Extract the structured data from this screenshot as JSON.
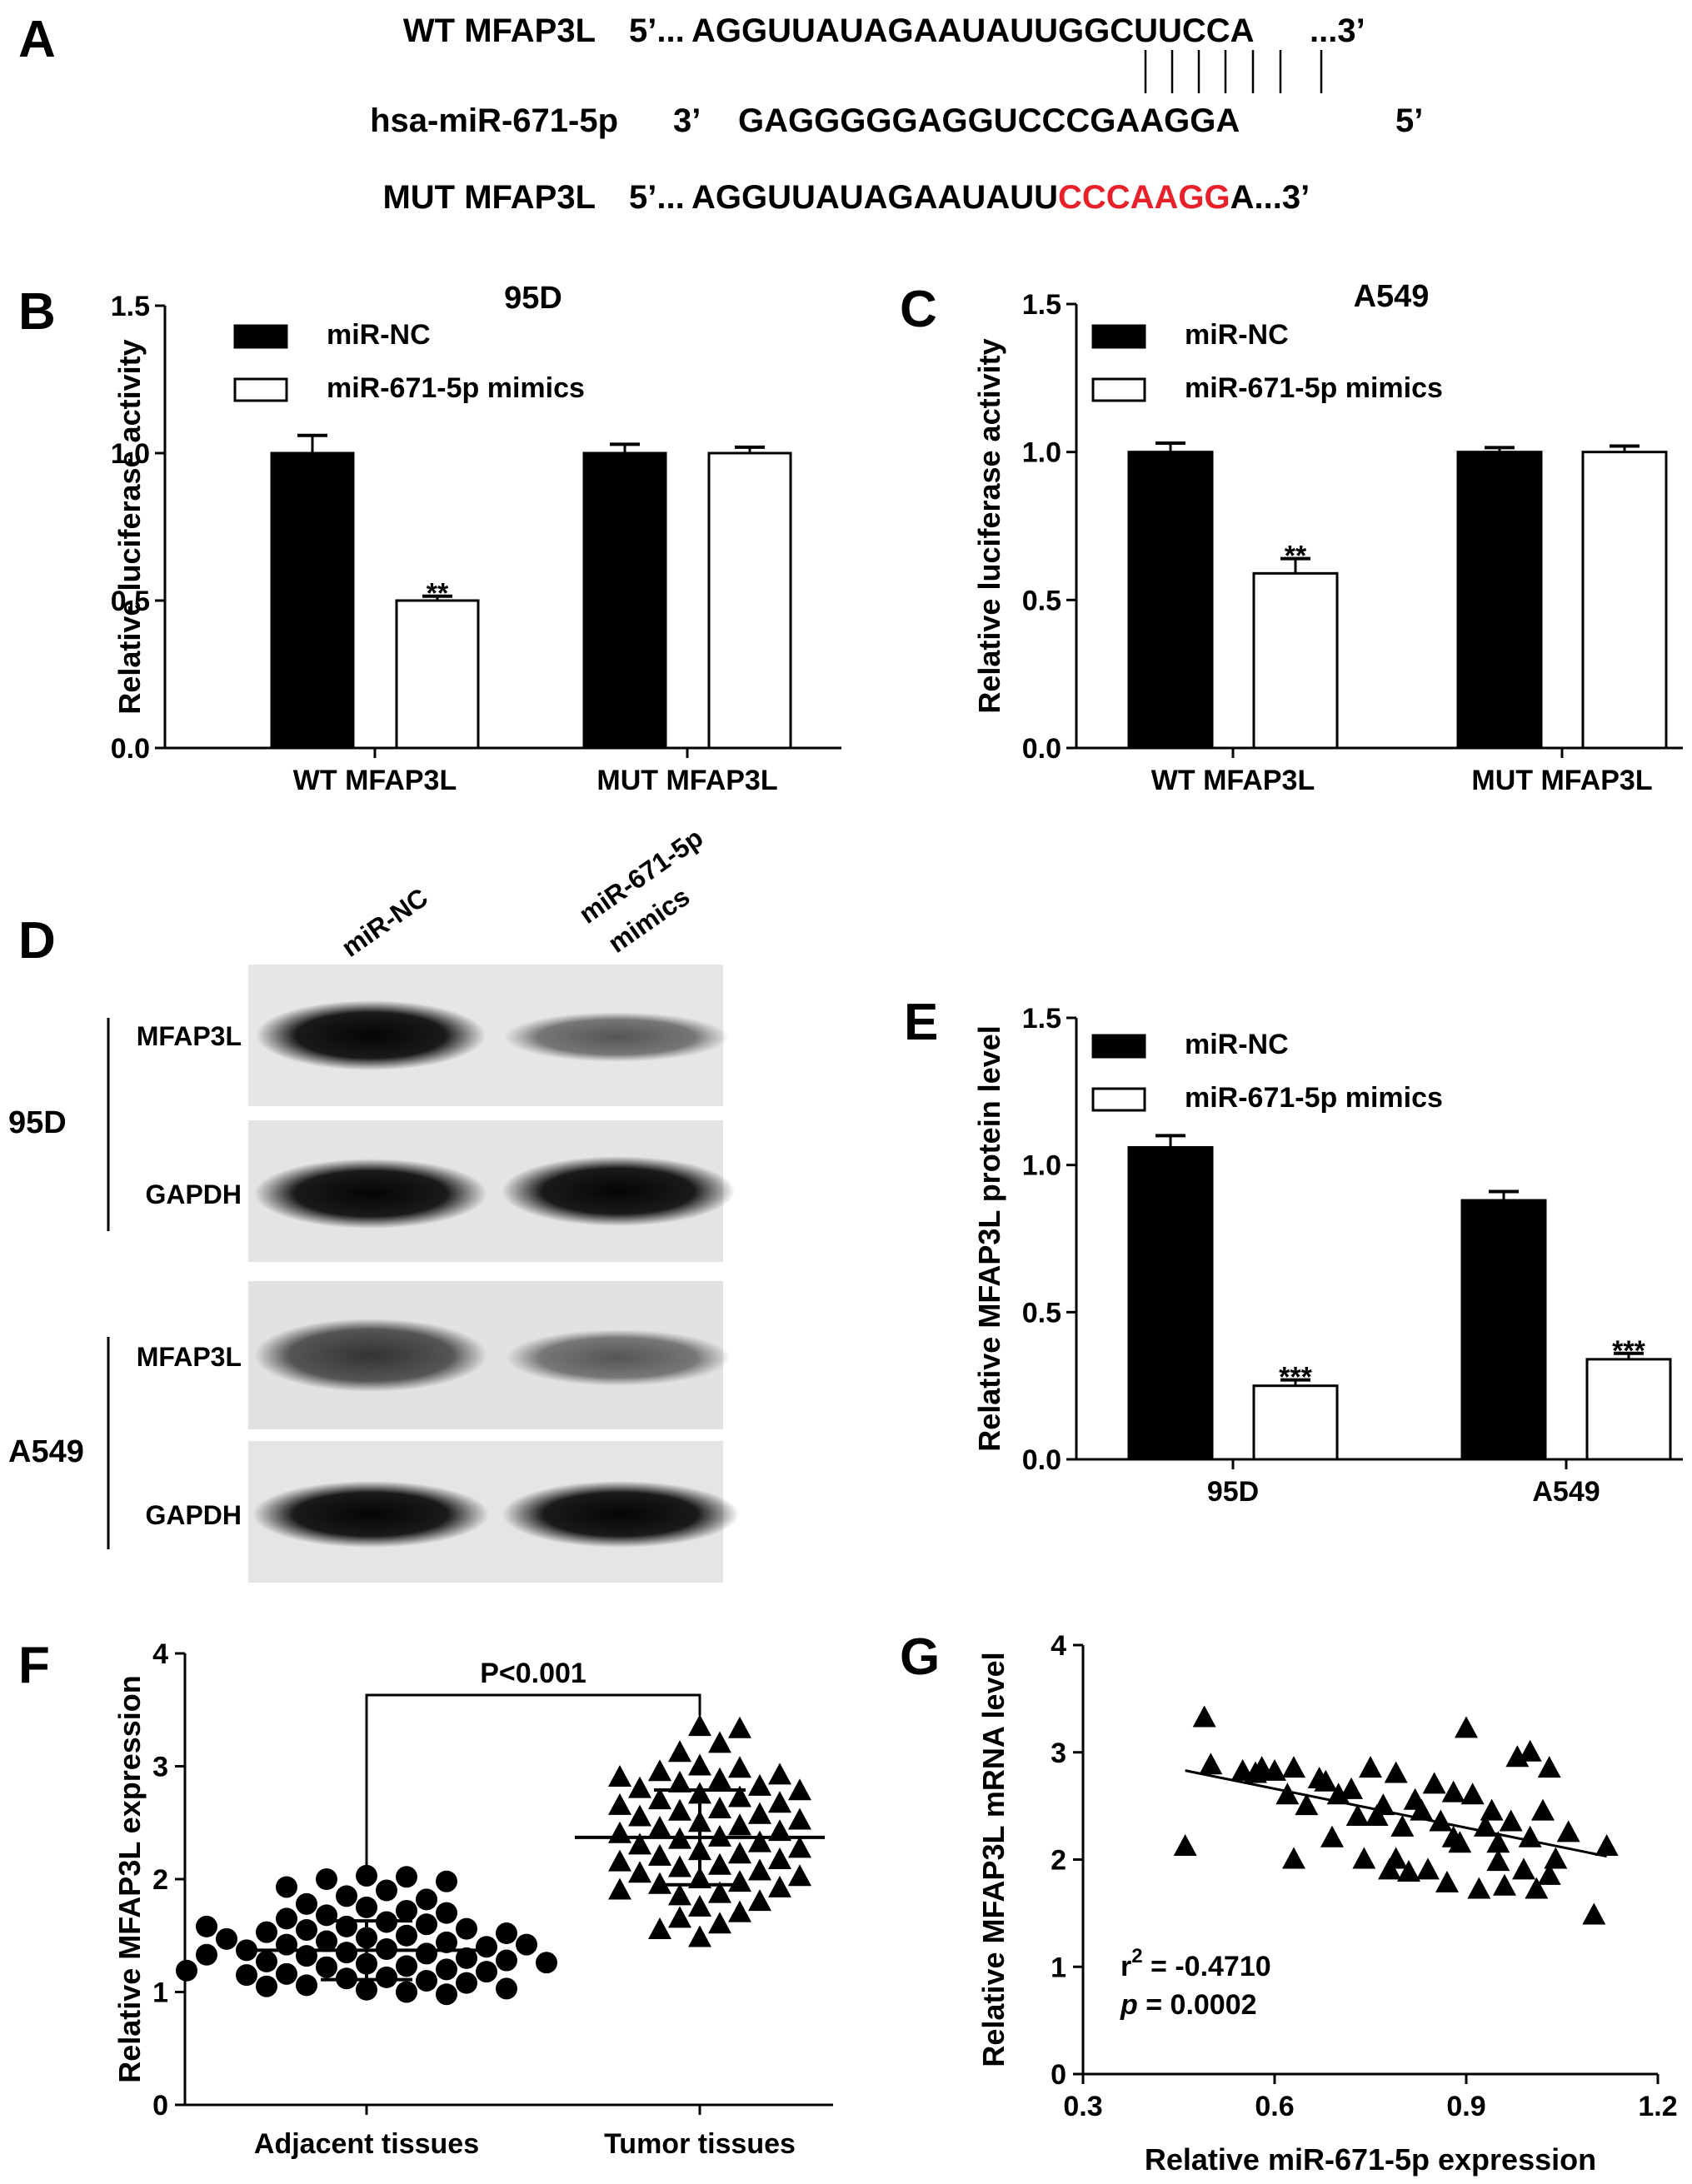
{
  "panelA": {
    "letter": "A",
    "rows": [
      {
        "label": "WT MFAP3L",
        "p5": "5’...",
        "seq": "AGGUUAUAGAAUAUUGGCUUCCA",
        "p3": "...3’",
        "highlight": ""
      },
      {
        "label": "hsa-miR-671-5p",
        "p5": "3’",
        "seq": "GAGGGGGAGGUCCCGAAGGA",
        "p3": "5’",
        "highlight": ""
      },
      {
        "label": "MUT MFAP3L",
        "p5": "5’...",
        "seq": "AGGUUAUAGAAUAUU",
        "mut": "CCCAAGG",
        "seqEnd": "A",
        "p3": "...3’"
      }
    ],
    "highlight_color": "#e8202a"
  },
  "panelD": {
    "letter": "D",
    "lanes": [
      "miR-NC",
      "miR-671-5p",
      "mimics"
    ],
    "groups": [
      {
        "cell": "95D",
        "bands": [
          "MFAP3L",
          "GAPDH"
        ]
      },
      {
        "cell": "A549",
        "bands": [
          "MFAP3L",
          "GAPDH"
        ]
      }
    ]
  },
  "chart_data": [
    {
      "panel": "B",
      "type": "bar",
      "title": "95D",
      "ylabel": "Relative luciferase activity",
      "ylim": [
        0,
        1.5
      ],
      "yticks": [
        "0.0",
        "0.5",
        "1.0",
        "1.5"
      ],
      "categories": [
        "WT MFAP3L",
        "MUT MFAP3L"
      ],
      "series": [
        {
          "name": "miR-NC",
          "values": [
            1.0,
            1.0
          ],
          "errors": [
            0.06,
            0.03
          ],
          "color": "#000000"
        },
        {
          "name": "miR-671-5p mimics",
          "values": [
            0.5,
            1.0
          ],
          "errors": [
            0.015,
            0.02
          ],
          "color": "#ffffff"
        }
      ],
      "annotations": [
        {
          "category": 0,
          "series": 1,
          "text": "**"
        }
      ],
      "legend": "top-left"
    },
    {
      "panel": "C",
      "type": "bar",
      "title": "A549",
      "ylabel": "Relative luciferase activity",
      "ylim": [
        0,
        1.5
      ],
      "yticks": [
        "0.0",
        "0.5",
        "1.0",
        "1.5"
      ],
      "categories": [
        "WT MFAP3L",
        "MUT MFAP3L"
      ],
      "series": [
        {
          "name": "miR-NC",
          "values": [
            1.0,
            1.0
          ],
          "errors": [
            0.03,
            0.015
          ],
          "color": "#000000"
        },
        {
          "name": "miR-671-5p mimics",
          "values": [
            0.59,
            1.0
          ],
          "errors": [
            0.05,
            0.02
          ],
          "color": "#ffffff"
        }
      ],
      "annotations": [
        {
          "category": 0,
          "series": 1,
          "text": "**"
        }
      ],
      "legend": "top-left"
    },
    {
      "panel": "E",
      "type": "bar",
      "title": "",
      "ylabel": "Relative MFAP3L protein level",
      "ylim": [
        0,
        1.5
      ],
      "yticks": [
        "0.0",
        "0.5",
        "1.0",
        "1.5"
      ],
      "categories": [
        "95D",
        "A549"
      ],
      "series": [
        {
          "name": "miR-NC",
          "values": [
            1.06,
            0.88
          ],
          "errors": [
            0.04,
            0.03
          ],
          "color": "#000000"
        },
        {
          "name": "miR-671-5p mimics",
          "values": [
            0.25,
            0.34
          ],
          "errors": [
            0.02,
            0.02
          ],
          "color": "#ffffff"
        }
      ],
      "annotations": [
        {
          "category": 0,
          "series": 1,
          "text": "***"
        },
        {
          "category": 1,
          "series": 1,
          "text": "***"
        }
      ],
      "legend": "top-left"
    },
    {
      "panel": "F",
      "type": "scatter",
      "ylabel": "Relative MFAP3L expression",
      "ylim": [
        0,
        4
      ],
      "yticks": [
        "0",
        "1",
        "2",
        "3",
        "4"
      ],
      "categories": [
        "Adjacent tissues",
        "Tumor tissues"
      ],
      "groups": [
        {
          "name": "Adjacent tissues",
          "marker": "circle",
          "mean": 1.37,
          "sd": 0.26,
          "values": [
            2.03,
            2.02,
            2.0,
            1.98,
            1.93,
            1.9,
            1.85,
            1.82,
            1.78,
            1.75,
            1.72,
            1.7,
            1.68,
            1.65,
            1.62,
            1.6,
            1.58,
            1.56,
            1.55,
            1.53,
            1.52,
            1.5,
            1.48,
            1.47,
            1.45,
            1.44,
            1.42,
            1.4,
            1.38,
            1.37,
            1.35,
            1.34,
            1.32,
            1.3,
            1.28,
            1.27,
            1.25,
            1.23,
            1.22,
            1.2,
            1.18,
            1.16,
            1.15,
            1.13,
            1.12,
            1.1,
            1.08,
            1.06,
            1.05,
            1.03,
            1.02,
            1.0,
            0.98,
            1.42,
            1.33,
            1.26,
            1.19,
            1.58
          ]
        },
        {
          "name": "Tumor tissues",
          "marker": "triangle",
          "mean": 2.37,
          "sd": 0.42,
          "values": [
            3.35,
            3.33,
            3.2,
            3.12,
            3.0,
            2.98,
            2.95,
            2.92,
            2.9,
            2.88,
            2.85,
            2.82,
            2.8,
            2.78,
            2.75,
            2.72,
            2.7,
            2.67,
            2.65,
            2.62,
            2.6,
            2.57,
            2.55,
            2.52,
            2.5,
            2.47,
            2.45,
            2.42,
            2.4,
            2.37,
            2.35,
            2.32,
            2.3,
            2.27,
            2.25,
            2.22,
            2.2,
            2.17,
            2.15,
            2.12,
            2.1,
            2.07,
            2.05,
            2.02,
            2.0,
            1.97,
            1.95,
            1.92,
            1.9,
            1.87,
            1.85,
            1.8,
            1.75,
            1.7,
            1.65,
            1.6,
            1.55,
            1.48
          ]
        }
      ],
      "comparison": "P<0.001"
    },
    {
      "panel": "G",
      "type": "scatter",
      "xlabel": "Relative miR-671-5p expression",
      "ylabel": "Relative MFAP3L mRNA level",
      "xlim": [
        0.3,
        1.2
      ],
      "ylim": [
        0,
        4
      ],
      "xticks": [
        "0.3",
        "0.6",
        "0.9",
        "1.2"
      ],
      "yticks": [
        "0",
        "1",
        "2",
        "3",
        "4"
      ],
      "marker": "triangle",
      "points": [
        [
          0.46,
          2.12
        ],
        [
          0.49,
          3.32
        ],
        [
          0.5,
          2.88
        ],
        [
          0.55,
          2.82
        ],
        [
          0.57,
          2.8
        ],
        [
          0.58,
          2.85
        ],
        [
          0.6,
          2.82
        ],
        [
          0.62,
          2.6
        ],
        [
          0.63,
          2.0
        ],
        [
          0.63,
          2.85
        ],
        [
          0.65,
          2.5
        ],
        [
          0.67,
          2.75
        ],
        [
          0.68,
          2.72
        ],
        [
          0.69,
          2.2
        ],
        [
          0.7,
          2.6
        ],
        [
          0.72,
          2.65
        ],
        [
          0.73,
          2.4
        ],
        [
          0.74,
          2.0
        ],
        [
          0.75,
          2.85
        ],
        [
          0.76,
          2.4
        ],
        [
          0.77,
          2.5
        ],
        [
          0.78,
          1.9
        ],
        [
          0.79,
          2.8
        ],
        [
          0.8,
          2.3
        ],
        [
          0.81,
          1.88
        ],
        [
          0.82,
          2.55
        ],
        [
          0.83,
          2.45
        ],
        [
          0.84,
          1.9
        ],
        [
          0.85,
          2.7
        ],
        [
          0.86,
          2.35
        ],
        [
          0.87,
          1.78
        ],
        [
          0.88,
          2.2
        ],
        [
          0.89,
          2.15
        ],
        [
          0.9,
          3.22
        ],
        [
          0.91,
          2.6
        ],
        [
          0.92,
          1.72
        ],
        [
          0.93,
          2.3
        ],
        [
          0.94,
          2.45
        ],
        [
          0.95,
          1.98
        ],
        [
          0.96,
          1.75
        ],
        [
          0.97,
          2.35
        ],
        [
          0.98,
          2.95
        ],
        [
          0.99,
          1.9
        ],
        [
          1.0,
          3.0
        ],
        [
          1.0,
          2.2
        ],
        [
          1.01,
          1.72
        ],
        [
          1.02,
          2.45
        ],
        [
          1.03,
          1.85
        ],
        [
          1.03,
          2.85
        ],
        [
          1.04,
          2.0
        ],
        [
          1.06,
          2.25
        ],
        [
          1.1,
          1.48
        ],
        [
          1.12,
          2.12
        ],
        [
          0.95,
          2.15
        ],
        [
          0.88,
          2.62
        ],
        [
          0.79,
          2.0
        ]
      ],
      "fit_line": [
        [
          0.46,
          2.83
        ],
        [
          1.12,
          2.03
        ]
      ],
      "stats": {
        "r2_prefix": "r",
        "r2_sup": "2",
        "r2_value": " = -0.4710",
        "p_label": "p",
        "p_value": " = 0.0002"
      }
    }
  ]
}
